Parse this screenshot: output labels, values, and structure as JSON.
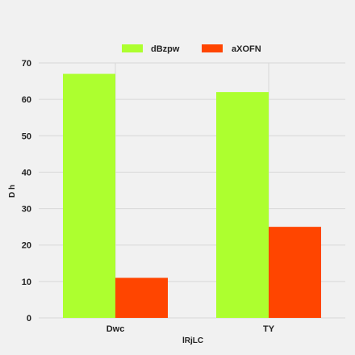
{
  "chart_data": {
    "type": "bar",
    "categories": [
      "Dwc",
      "TY"
    ],
    "series": [
      {
        "name": "dBzpw",
        "values": [
          67,
          62
        ],
        "color": "#adff2f"
      },
      {
        "name": "aXOFN",
        "values": [
          11,
          25
        ],
        "color": "#ff4500"
      }
    ],
    "xlabel": "lRjLC",
    "ylabel": "D h",
    "ylim": [
      0,
      70
    ],
    "yticks": [
      0,
      10,
      20,
      30,
      40,
      50,
      60,
      70
    ],
    "grid": true,
    "legend_position": "top-center"
  }
}
